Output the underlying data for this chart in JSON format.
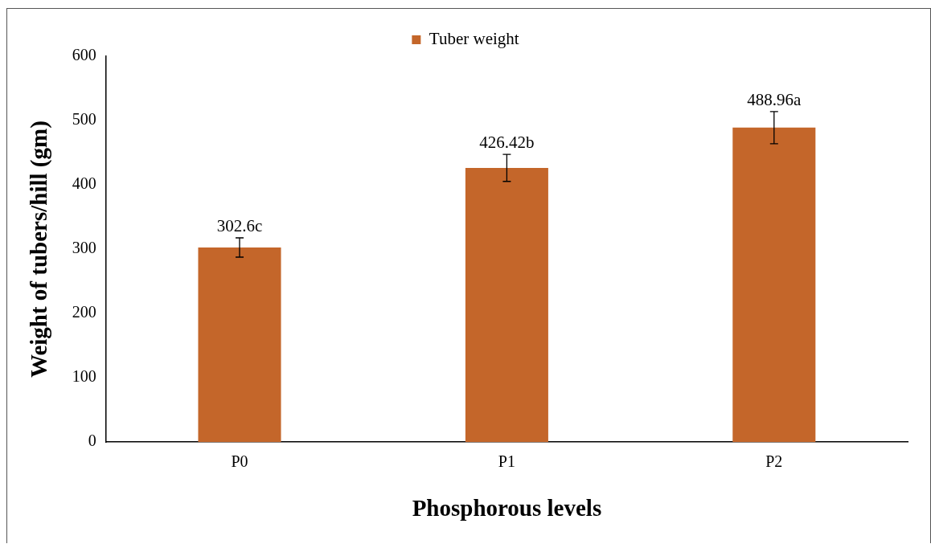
{
  "chart_data": {
    "type": "bar",
    "xlabel": "Phosphorous levels",
    "ylabel": "Weight of tubers/hill (gm)",
    "categories": [
      "P0",
      "P1",
      "P2"
    ],
    "series": [
      {
        "name": "Tuber weight",
        "color": "#c4662a",
        "values": [
          302.6,
          426.42,
          488.96
        ],
        "errors": [
          15,
          21,
          25
        ],
        "value_labels": [
          "302.6c",
          "426.42b",
          "488.96a"
        ]
      }
    ],
    "ylim": [
      0,
      600
    ],
    "yticks": [
      0,
      100,
      200,
      300,
      400,
      500,
      600
    ],
    "grid": false,
    "legend": "top"
  }
}
